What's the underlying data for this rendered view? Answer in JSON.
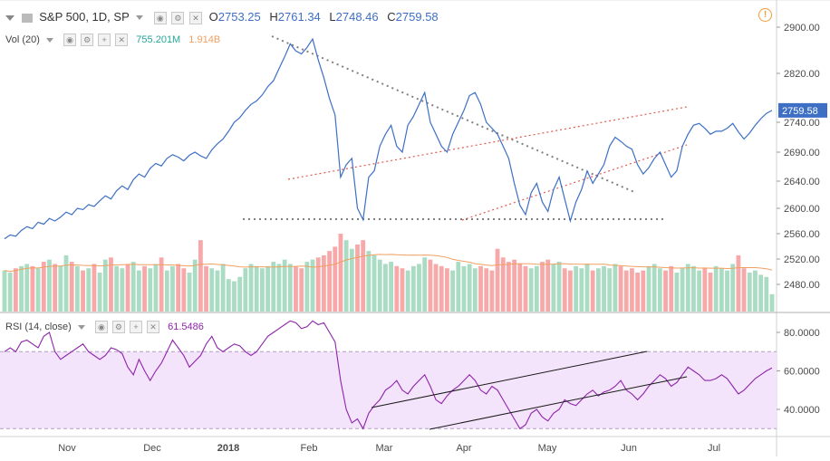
{
  "header": {
    "symbol_title": "S&P 500, 1D, SP",
    "open_label": "O",
    "open_value": "2753.25",
    "high_label": "H",
    "high_value": "2761.34",
    "low_label": "L",
    "low_value": "2748.46",
    "close_label": "C",
    "close_value": "2759.58",
    "alert_glyph": "!"
  },
  "volume_legend": {
    "label": "Vol (20)",
    "value": "755.201M",
    "ma_value": "1.914B"
  },
  "rsi_legend": {
    "label": "RSI (14, close)",
    "value": "61.5486"
  },
  "colors": {
    "price_line": "#3d6fc5",
    "trend_dotted_red": "#e05a4f",
    "trend_dotted_gray": "#808080",
    "vol_up": "#a9dcc3",
    "vol_down": "#f7a9a9",
    "vol_ma": "#f0a060",
    "rsi_line": "#8e24aa",
    "rsi_band": "#f3e3fb",
    "last_price_badge": "#3d6fc5"
  },
  "chart_data": [
    {
      "type": "line",
      "title": "S&P 500, 1D, SP",
      "y_axis_ticks": [
        "2900.00",
        "2820.00",
        "2740.00",
        "2690.00",
        "2640.00",
        "2600.00",
        "2560.00",
        "2520.00",
        "2480.00"
      ],
      "x_axis_ticks": [
        "Nov",
        "Dec",
        "2018",
        "Feb",
        "Mar",
        "Apr",
        "May",
        "Jun",
        "Jul"
      ],
      "ylim": [
        2450,
        2920
      ],
      "last_price_label": "2759.58",
      "series": [
        {
          "values": [
            2552,
            2558,
            2556,
            2565,
            2571,
            2568,
            2578,
            2575,
            2584,
            2580,
            2586,
            2594,
            2590,
            2600,
            2598,
            2606,
            2603,
            2612,
            2620,
            2615,
            2628,
            2636,
            2630,
            2646,
            2655,
            2650,
            2664,
            2672,
            2668,
            2680,
            2686,
            2682,
            2676,
            2685,
            2690,
            2684,
            2680,
            2694,
            2704,
            2712,
            2725,
            2740,
            2748,
            2760,
            2770,
            2776,
            2786,
            2800,
            2810,
            2830,
            2850,
            2872,
            2860,
            2855,
            2866,
            2880,
            2845,
            2815,
            2780,
            2752,
            2650,
            2670,
            2680,
            2600,
            2582,
            2650,
            2660,
            2700,
            2720,
            2735,
            2700,
            2690,
            2735,
            2750,
            2770,
            2790,
            2740,
            2720,
            2700,
            2690,
            2720,
            2740,
            2760,
            2785,
            2790,
            2770,
            2740,
            2730,
            2720,
            2700,
            2680,
            2640,
            2605,
            2590,
            2625,
            2640,
            2610,
            2595,
            2630,
            2650,
            2615,
            2580,
            2610,
            2630,
            2660,
            2640,
            2655,
            2670,
            2700,
            2715,
            2708,
            2700,
            2695,
            2670,
            2655,
            2665,
            2680,
            2690,
            2670,
            2650,
            2660,
            2700,
            2720,
            2735,
            2738,
            2730,
            2720,
            2725,
            2725,
            2730,
            2738,
            2724,
            2712,
            2722,
            2735,
            2746,
            2755,
            2760
          ]
        },
        {
          "name": "Volume",
          "values": [
            1.9,
            1.8,
            2.0,
            2.1,
            2.2,
            2.1,
            2.0,
            2.3,
            2.4,
            2.2,
            2.1,
            2.6,
            2.3,
            2.1,
            1.9,
            2.0,
            2.2,
            1.8,
            2.4,
            2.5,
            2.1,
            2.0,
            2.2,
            2.3,
            1.9,
            2.1,
            2.0,
            2.2,
            2.5,
            1.9,
            2.1,
            2.2,
            2.0,
            1.8,
            2.4,
            3.3,
            2.1,
            2.0,
            1.9,
            2.2,
            1.5,
            1.4,
            1.6,
            2.0,
            2.2,
            2.1,
            2.0,
            2.1,
            2.3,
            2.2,
            2.4,
            2.2,
            2.1,
            2.0,
            2.3,
            2.4,
            2.5,
            2.6,
            2.8,
            3.0,
            3.6,
            3.3,
            2.9,
            3.1,
            3.3,
            2.8,
            2.6,
            2.4,
            2.2,
            2.3,
            2.1,
            2.0,
            1.9,
            2.1,
            2.2,
            2.5,
            2.4,
            2.2,
            2.1,
            2.0,
            1.9,
            2.3,
            2.1,
            2.2,
            2.0,
            2.1,
            2.0,
            1.9,
            2.9,
            2.5,
            2.3,
            2.4,
            2.2,
            2.1,
            2.0,
            2.1,
            2.3,
            2.4,
            2.2,
            2.3,
            2.0,
            1.9,
            2.1,
            2.0,
            2.2,
            1.9,
            2.0,
            2.1,
            2.0,
            2.2,
            2.1,
            1.9,
            2.0,
            1.8,
            1.9,
            2.1,
            2.2,
            2.0,
            1.9,
            2.1,
            1.8,
            2.0,
            2.2,
            2.1,
            1.9,
            2.0,
            1.8,
            2.1,
            2.0,
            1.9,
            2.2,
            2.6,
            2.0,
            1.8,
            1.9,
            1.7,
            1.6,
            0.8
          ]
        },
        {
          "name": "RSI",
          "values": [
            70,
            72,
            70,
            75,
            76,
            74,
            72,
            78,
            80,
            70,
            66,
            68,
            70,
            72,
            74,
            70,
            68,
            66,
            68,
            72,
            71,
            69,
            62,
            58,
            66,
            60,
            55,
            60,
            64,
            70,
            76,
            72,
            68,
            62,
            65,
            68,
            74,
            78,
            72,
            70,
            72,
            74,
            73,
            70,
            68,
            70,
            74,
            78,
            80,
            82,
            84,
            86,
            85,
            82,
            83,
            86,
            84,
            85,
            80,
            75,
            55,
            40,
            33,
            35,
            30,
            38,
            42,
            45,
            50,
            52,
            55,
            50,
            48,
            52,
            55,
            58,
            52,
            45,
            43,
            47,
            50,
            52,
            55,
            58,
            55,
            50,
            48,
            52,
            50,
            45,
            40,
            35,
            30,
            32,
            38,
            40,
            36,
            34,
            38,
            40,
            45,
            43,
            42,
            45,
            48,
            50,
            47,
            49,
            50,
            52,
            55,
            50,
            48,
            45,
            48,
            52,
            55,
            58,
            56,
            52,
            54,
            58,
            62,
            60,
            58,
            55,
            55,
            56,
            58,
            56,
            52,
            48,
            50,
            53,
            56,
            58,
            60,
            61.5
          ]
        }
      ]
    },
    {
      "type": "line",
      "title": "RSI (14, close)",
      "y_axis_ticks": [
        "80.0000",
        "60.0000",
        "40.0000"
      ],
      "ylim": [
        25,
        92
      ],
      "band": [
        30,
        70
      ]
    }
  ]
}
